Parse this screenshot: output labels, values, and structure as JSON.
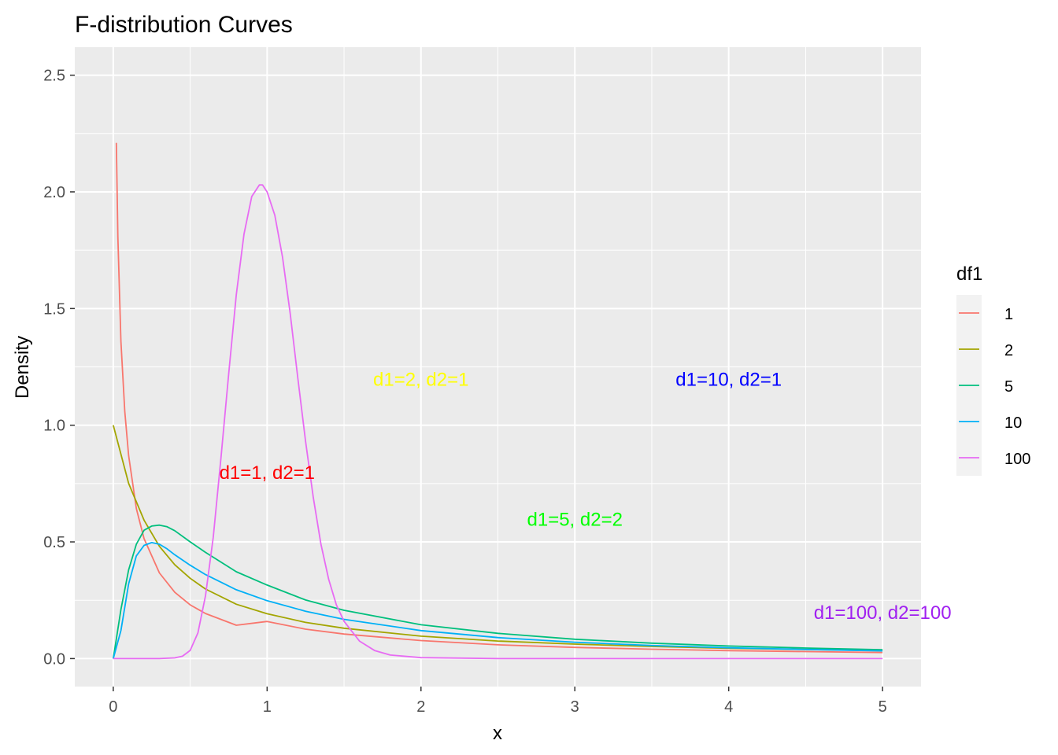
{
  "chart_data": {
    "type": "line",
    "title": "F-distribution Curves",
    "xlabel": "x",
    "ylabel": "Density",
    "xlim": [
      -0.25,
      5.25
    ],
    "ylim": [
      -0.12,
      2.62
    ],
    "x_ticks": [
      0,
      1,
      2,
      3,
      4,
      5
    ],
    "x_tick_labels": [
      "0",
      "1",
      "2",
      "3",
      "4",
      "5"
    ],
    "y_ticks": [
      0,
      0.5,
      1,
      1.5,
      2,
      2.5
    ],
    "y_tick_labels": [
      "0.0",
      "0.5",
      "1.0",
      "1.5",
      "2.0",
      "2.5"
    ],
    "grid": true,
    "background": "#ebebeb",
    "legend": {
      "title": "df1",
      "position": "right",
      "entries": [
        "1",
        "2",
        "5",
        "10",
        "100"
      ]
    },
    "series": [
      {
        "name": "1",
        "color": "#F8766D",
        "x": [
          0.02,
          0.03,
          0.05,
          0.075,
          0.1,
          0.15,
          0.2,
          0.3,
          0.4,
          0.5,
          0.6,
          0.8,
          1.0,
          1.25,
          1.5,
          2,
          2.5,
          3,
          3.5,
          4,
          4.5,
          5
        ],
        "y": [
          2.21,
          1.81,
          1.36,
          1.06,
          0.87,
          0.643,
          0.514,
          0.367,
          0.284,
          0.23,
          0.193,
          0.143,
          0.159,
          0.126,
          0.105,
          0.077,
          0.059,
          0.048,
          0.04,
          0.034,
          0.03,
          0.026
        ]
      },
      {
        "name": "2",
        "color": "#A3A500",
        "x": [
          0,
          0.1,
          0.2,
          0.3,
          0.4,
          0.5,
          0.6,
          0.8,
          1.0,
          1.25,
          1.5,
          2,
          2.5,
          3,
          3.5,
          4,
          4.5,
          5
        ],
        "y": [
          1.0,
          0.751,
          0.593,
          0.481,
          0.402,
          0.344,
          0.298,
          0.233,
          0.192,
          0.155,
          0.13,
          0.096,
          0.075,
          0.062,
          0.052,
          0.044,
          0.039,
          0.034
        ]
      },
      {
        "name": "5",
        "color": "#00BF7D",
        "x": [
          0,
          0.05,
          0.1,
          0.15,
          0.2,
          0.25,
          0.3,
          0.35,
          0.4,
          0.5,
          0.6,
          0.8,
          1.0,
          1.25,
          1.5,
          2,
          2.5,
          3,
          3.5,
          4,
          4.5,
          5
        ],
        "y": [
          0,
          0.21,
          0.38,
          0.49,
          0.55,
          0.568,
          0.572,
          0.565,
          0.548,
          0.5,
          0.455,
          0.372,
          0.315,
          0.251,
          0.207,
          0.145,
          0.108,
          0.083,
          0.066,
          0.054,
          0.045,
          0.038
        ]
      },
      {
        "name": "10",
        "color": "#00B0F6",
        "x": [
          0,
          0.05,
          0.1,
          0.15,
          0.2,
          0.25,
          0.3,
          0.35,
          0.4,
          0.5,
          0.6,
          0.8,
          1.0,
          1.25,
          1.5,
          2,
          2.5,
          3,
          3.5,
          4,
          4.5,
          5
        ],
        "y": [
          0,
          0.12,
          0.32,
          0.44,
          0.485,
          0.497,
          0.49,
          0.47,
          0.445,
          0.4,
          0.36,
          0.295,
          0.248,
          0.203,
          0.168,
          0.12,
          0.09,
          0.07,
          0.056,
          0.046,
          0.039,
          0.033
        ]
      },
      {
        "name": "100",
        "color": "#E76BF3",
        "x": [
          0,
          0.3,
          0.4,
          0.45,
          0.5,
          0.55,
          0.6,
          0.65,
          0.7,
          0.75,
          0.8,
          0.85,
          0.9,
          0.95,
          0.97,
          1.0,
          1.05,
          1.1,
          1.15,
          1.2,
          1.25,
          1.3,
          1.35,
          1.4,
          1.45,
          1.5,
          1.6,
          1.7,
          1.8,
          2.0,
          2.5,
          3,
          4,
          5
        ],
        "y": [
          0,
          0.0,
          0.003,
          0.01,
          0.035,
          0.11,
          0.27,
          0.52,
          0.86,
          1.22,
          1.56,
          1.82,
          1.98,
          2.03,
          2.03,
          2.0,
          1.9,
          1.72,
          1.48,
          1.2,
          0.93,
          0.69,
          0.49,
          0.34,
          0.23,
          0.16,
          0.075,
          0.034,
          0.015,
          0.004,
          0.0,
          0.0,
          0.0,
          0.0
        ]
      }
    ],
    "annotations": [
      {
        "text": "d1=1, d2=1",
        "x": 1,
        "y": 0.8,
        "color": "#FF0000"
      },
      {
        "text": "d1=2, d2=1",
        "x": 2,
        "y": 1.2,
        "color": "#FFFF00"
      },
      {
        "text": "d1=5, d2=2",
        "x": 3,
        "y": 0.6,
        "color": "#00FF00"
      },
      {
        "text": "d1=10, d2=1",
        "x": 4,
        "y": 1.2,
        "color": "#0000FF"
      },
      {
        "text": "d1=100, d2=100",
        "x": 5,
        "y": 0.2,
        "color": "#A020F0"
      }
    ]
  }
}
